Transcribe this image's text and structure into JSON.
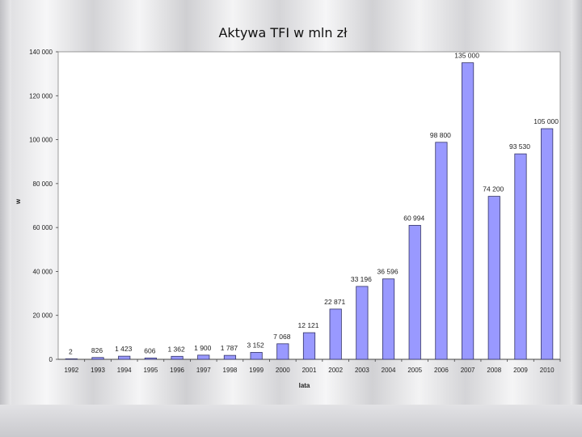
{
  "chart_data": {
    "type": "bar",
    "title": "Aktywa TFI w mln zł",
    "xlabel": "lata",
    "ylabel": "w",
    "ylim": [
      0,
      140000
    ],
    "yticks": [
      0,
      20000,
      40000,
      60000,
      80000,
      100000,
      120000,
      140000
    ],
    "ytick_labels": [
      "0",
      "20 000",
      "40 000",
      "60 000",
      "80 000",
      "100 000",
      "120 000",
      "140 000"
    ],
    "categories": [
      "1992",
      "1993",
      "1994",
      "1995",
      "1996",
      "1997",
      "1998",
      "1999",
      "2000",
      "2001",
      "2002",
      "2003",
      "2004",
      "2005",
      "2006",
      "2007",
      "2008",
      "2009",
      "2010"
    ],
    "values": [
      2,
      826,
      1423,
      606,
      1362,
      1900,
      1787,
      3152,
      7068,
      12121,
      22871,
      33196,
      36596,
      60994,
      98800,
      135000,
      74200,
      93530,
      105000
    ],
    "data_labels": [
      "2",
      "826",
      "1 423",
      "606",
      "1 362",
      "1 900",
      "1 787",
      "3 152",
      "7 068",
      "12 121",
      "22 871",
      "33 196",
      "36 596",
      "60 994",
      "98 800",
      "135 000",
      "74 200",
      "93 530",
      "105 000"
    ],
    "grid": true,
    "legend": "none",
    "colors": {
      "bar_fill": "#9999ff",
      "bar_stroke": "#333366",
      "grid": "#b8b8b8"
    }
  }
}
